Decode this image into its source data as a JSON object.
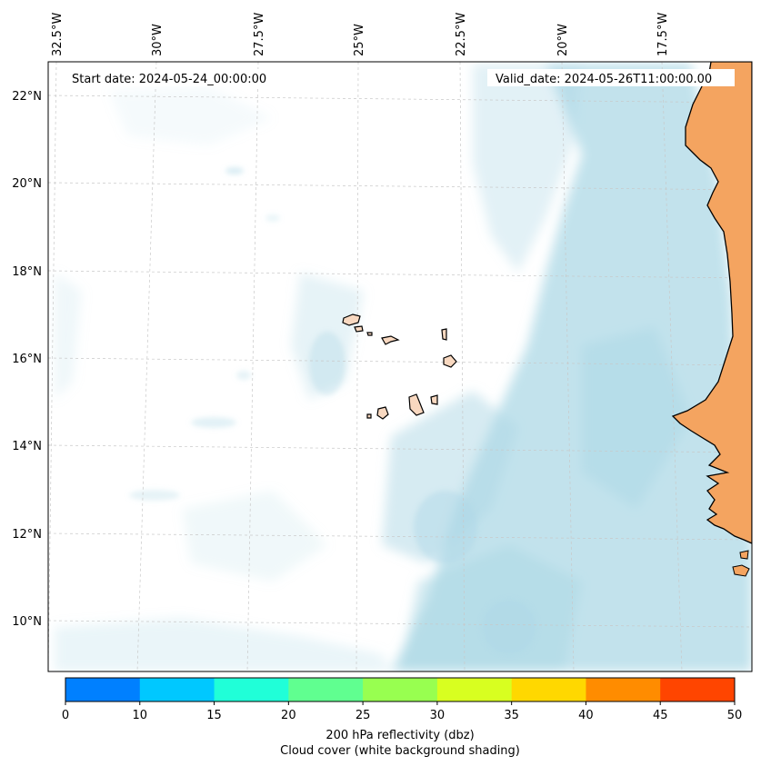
{
  "map": {
    "start_date": "Start date: 2024-05-24_00:00:00",
    "valid_date": "Valid_date: 2024-05-26T11:00:00.00",
    "top_axis_labels": [
      "32.5°W",
      "30°W",
      "27.5°W",
      "25°W",
      "22.5°W",
      "20°W",
      "17.5°W"
    ],
    "left_axis_labels": [
      "22°N",
      "20°N",
      "18°N",
      "16°N",
      "14°N",
      "12°N",
      "10°N"
    ],
    "land_color": "#f4a460",
    "cloud_color": "#add8e6",
    "coastline_color": "#000000"
  },
  "colorbar": {
    "ticks": [
      "0",
      "10",
      "15",
      "20",
      "25",
      "30",
      "35",
      "40",
      "45",
      "50"
    ],
    "colors": [
      "#0080ff",
      "#00c8ff",
      "#20ffd8",
      "#60ff90",
      "#98ff50",
      "#d8ff20",
      "#ffd800",
      "#ff8c00",
      "#ff4500"
    ],
    "label_line1": "200 hPa reflectivity (dbz)",
    "label_line2": "Cloud cover (white background shading)"
  }
}
